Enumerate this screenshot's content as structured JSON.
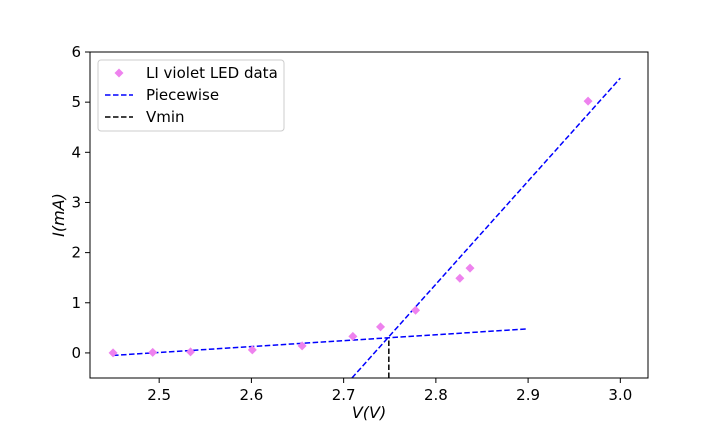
{
  "chart_data": {
    "type": "scatter",
    "xlabel": "V(V)",
    "ylabel": "I(mA)",
    "xlim": [
      2.425,
      3.03
    ],
    "ylim": [
      -0.5,
      6.0
    ],
    "xticks": [
      2.5,
      2.6,
      2.7,
      2.8,
      2.9,
      3.0
    ],
    "xtick_labels": [
      "2.5",
      "2.6",
      "2.7",
      "2.8",
      "2.9",
      "3.0"
    ],
    "yticks": [
      0,
      1,
      2,
      3,
      4,
      5,
      6
    ],
    "ytick_labels": [
      "0",
      "1",
      "2",
      "3",
      "4",
      "5",
      "6"
    ],
    "grid": false,
    "legend_position": "top-left",
    "series": [
      {
        "name": "LI violet LED data",
        "kind": "scatter",
        "marker": "diamond",
        "color": "#ee82ee",
        "x": [
          2.45,
          2.493,
          2.534,
          2.601,
          2.655,
          2.71,
          2.74,
          2.778,
          2.826,
          2.837,
          2.965
        ],
        "y": [
          0.0,
          0.01,
          0.02,
          0.06,
          0.14,
          0.33,
          0.52,
          0.85,
          1.49,
          1.69,
          5.02
        ]
      },
      {
        "name": "Piecewise",
        "kind": "line",
        "style": "dashed",
        "color": "#0000ff",
        "segments": [
          {
            "x": [
              2.45,
              2.9
            ],
            "y": [
              -0.05,
              0.48
            ]
          },
          {
            "x": [
              2.709,
              3.0
            ],
            "y": [
              -0.5,
              5.48
            ]
          }
        ]
      },
      {
        "name": "Vmin",
        "kind": "vline",
        "style": "dashed",
        "color": "#000000",
        "x": 2.749,
        "y": [
          -0.5,
          0.3
        ]
      }
    ]
  }
}
